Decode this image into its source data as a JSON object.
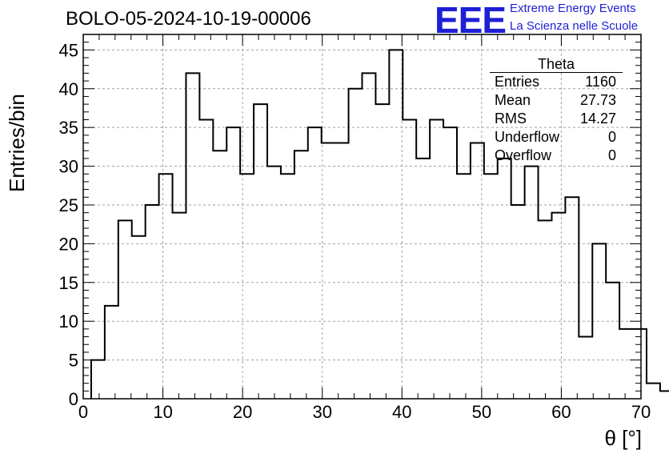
{
  "header": {
    "title": "BOLO-05-2024-10-19-00006",
    "logo_text": "EEE",
    "logo_line1": "Extreme Energy Events",
    "logo_line2": "La Scienza nelle Scuole"
  },
  "stats_box": {
    "title": "Theta",
    "rows": [
      {
        "label": "Entries",
        "value": "1160"
      },
      {
        "label": "Mean",
        "value": "27.73"
      },
      {
        "label": "RMS",
        "value": "14.27"
      },
      {
        "label": "Underflow",
        "value": "0"
      },
      {
        "label": "Overflow",
        "value": "0"
      }
    ]
  },
  "colors": {
    "logo": "#1f1fd6",
    "line": "#000000",
    "grid": "#a0a0a0"
  },
  "chart_data": {
    "type": "bar",
    "style": "step histogram",
    "title": "BOLO-05-2024-10-19-00006",
    "xlabel": "θ [°]",
    "ylabel": "Entries/bin",
    "xlim": [
      0,
      70
    ],
    "ylim": [
      0,
      47
    ],
    "x_ticks": [
      0,
      10,
      20,
      30,
      40,
      50,
      60,
      70
    ],
    "y_ticks": [
      0,
      5,
      10,
      15,
      20,
      25,
      30,
      35,
      40,
      45
    ],
    "grid": true,
    "bin_width": 1.7,
    "bin_edges_start": 1.0,
    "values": [
      5,
      12,
      23,
      21,
      25,
      29,
      24,
      42,
      36,
      32,
      35,
      29,
      38,
      30,
      29,
      32,
      35,
      33,
      33,
      40,
      42,
      38,
      45,
      36,
      31,
      36,
      35,
      29,
      33,
      29,
      31,
      25,
      30,
      23,
      24,
      26,
      8,
      20,
      15,
      9,
      9,
      2,
      1,
      0,
      0,
      0,
      0,
      0,
      0,
      0,
      0,
      0,
      0,
      0,
      0,
      0,
      0,
      0,
      0,
      0
    ]
  }
}
